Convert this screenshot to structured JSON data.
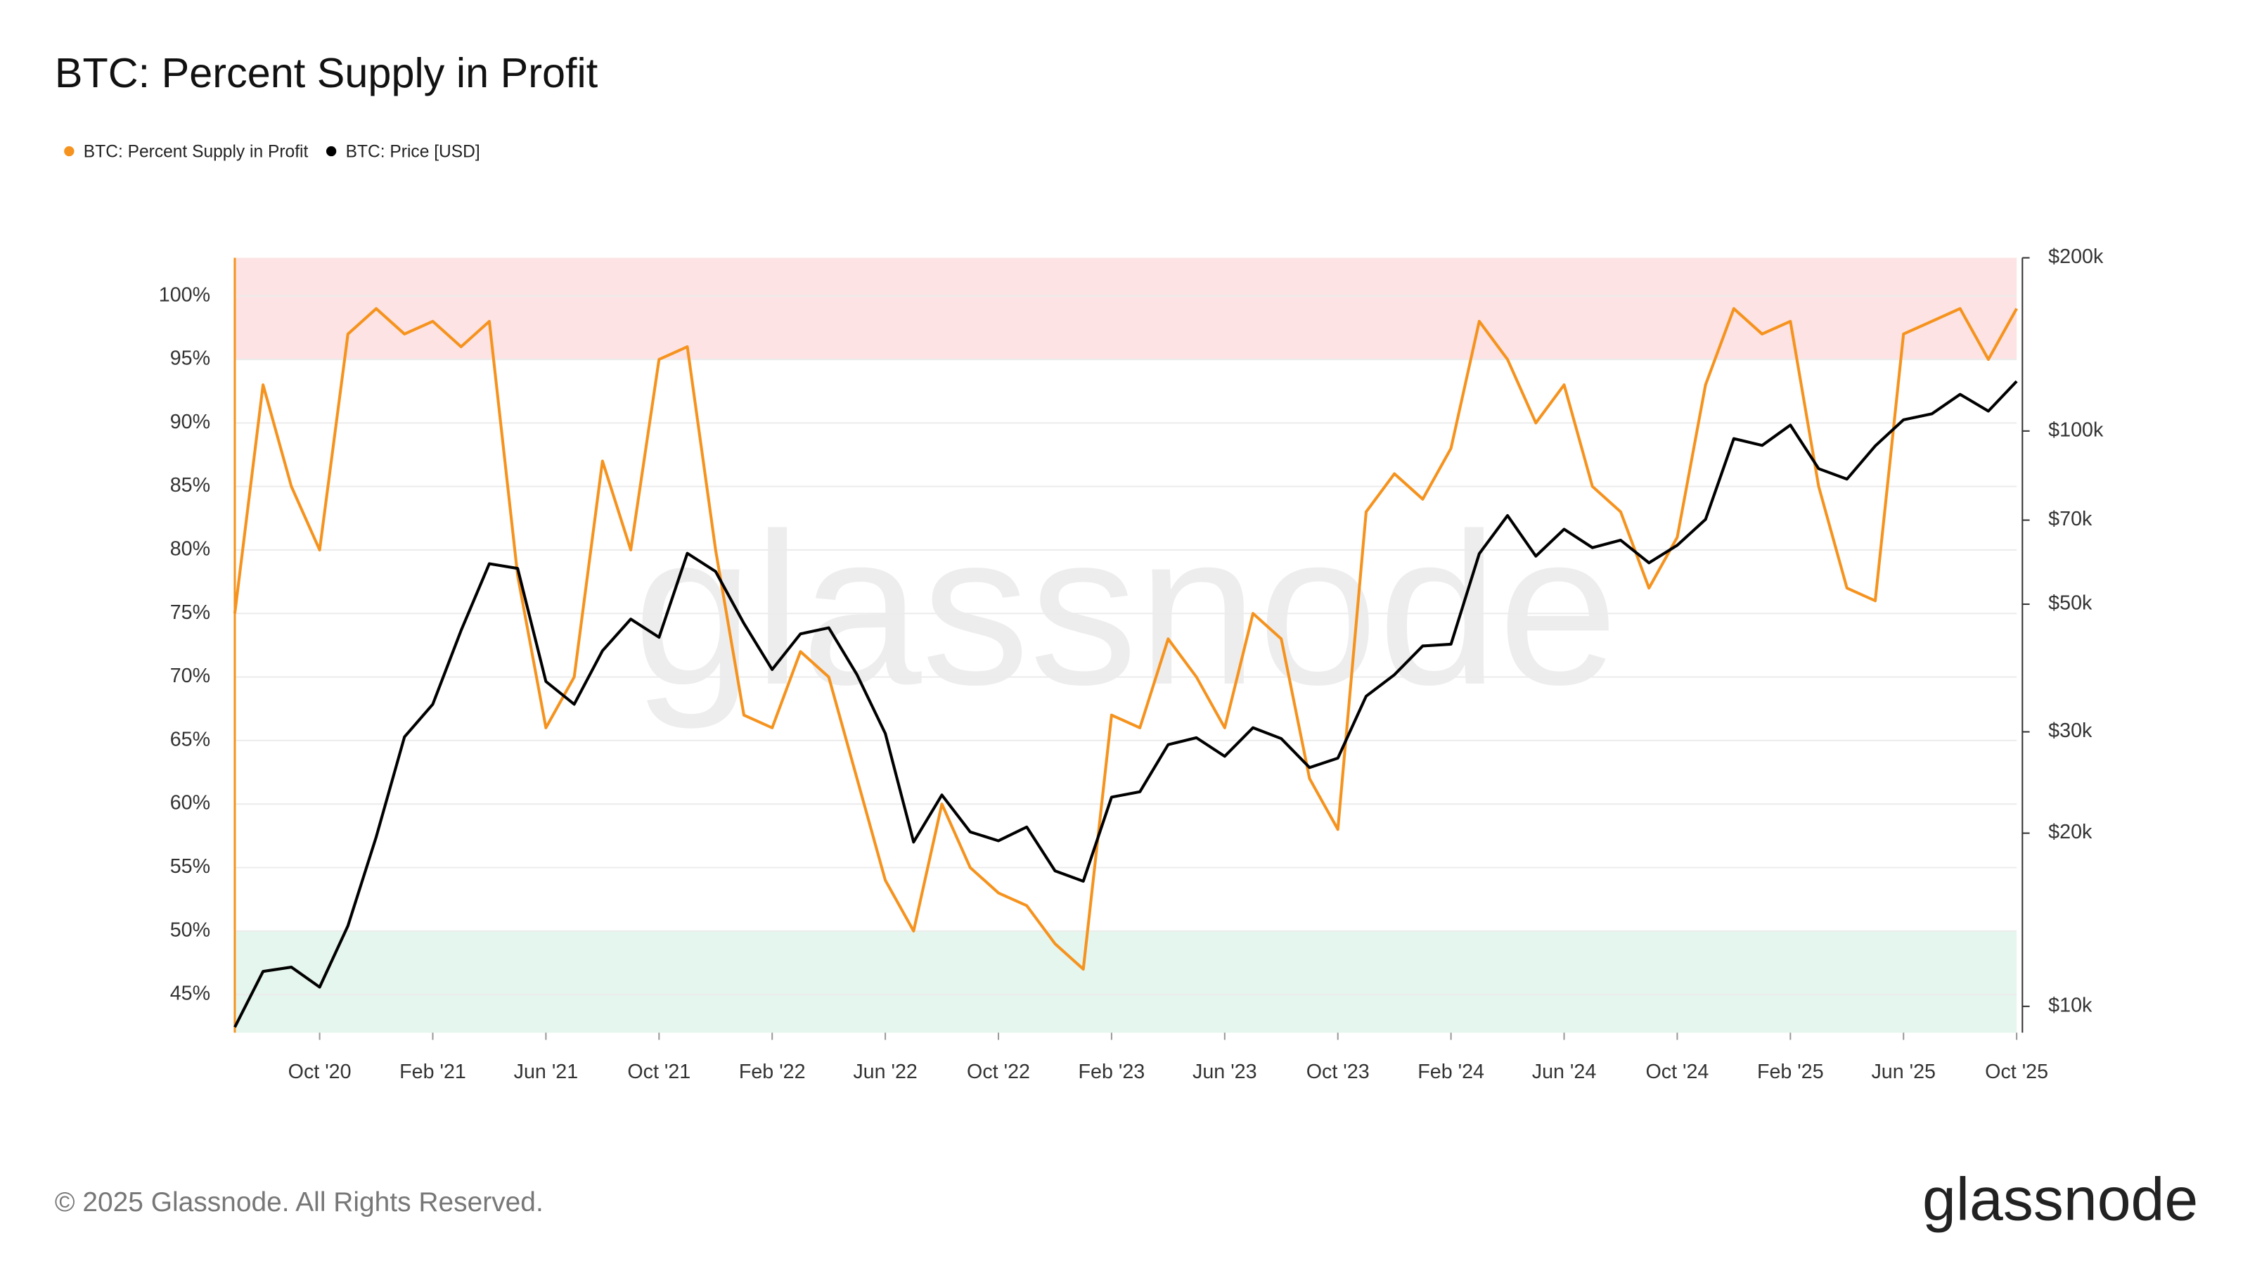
{
  "chart_data": {
    "type": "line",
    "title": "BTC: Percent Supply in Profit",
    "watermark": "glassnode",
    "footer": "© 2025 Glassnode. All Rights Reserved.",
    "logo": "glassnode",
    "x": [
      "2020-07",
      "2020-08",
      "2020-09",
      "2020-10",
      "2020-11",
      "2020-12",
      "2021-01",
      "2021-02",
      "2021-03",
      "2021-04",
      "2021-05",
      "2021-06",
      "2021-07",
      "2021-08",
      "2021-09",
      "2021-10",
      "2021-11",
      "2021-12",
      "2022-01",
      "2022-02",
      "2022-03",
      "2022-04",
      "2022-05",
      "2022-06",
      "2022-07",
      "2022-08",
      "2022-09",
      "2022-10",
      "2022-11",
      "2022-12",
      "2023-01",
      "2023-02",
      "2023-03",
      "2023-04",
      "2023-05",
      "2023-06",
      "2023-07",
      "2023-08",
      "2023-09",
      "2023-10",
      "2023-11",
      "2023-12",
      "2024-01",
      "2024-02",
      "2024-03",
      "2024-04",
      "2024-05",
      "2024-06",
      "2024-07",
      "2024-08",
      "2024-09",
      "2024-10",
      "2024-11",
      "2024-12",
      "2025-01",
      "2025-02",
      "2025-03",
      "2025-04",
      "2025-05",
      "2025-06",
      "2025-07",
      "2025-08",
      "2025-09",
      "2025-10"
    ],
    "series": [
      {
        "name": "BTC: Percent Supply in Profit",
        "color": "#f5931e",
        "axis": "y",
        "values": [
          75,
          93,
          85,
          80,
          97,
          99,
          97,
          98,
          96,
          98,
          78,
          66,
          70,
          87,
          80,
          95,
          96,
          80,
          67,
          66,
          72,
          70,
          62,
          54,
          50,
          60,
          55,
          53,
          52,
          49,
          47,
          67,
          66,
          73,
          70,
          66,
          75,
          73,
          62,
          58,
          83,
          86,
          84,
          88,
          98,
          95,
          90,
          93,
          85,
          83,
          77,
          81,
          93,
          99,
          97,
          98,
          85,
          77,
          76,
          97,
          98,
          99,
          95,
          99
        ]
      },
      {
        "name": "BTC: Price [USD]",
        "color": "#000000",
        "axis": "y2",
        "values": [
          9200,
          11500,
          11700,
          10800,
          13800,
          19700,
          29400,
          33500,
          45000,
          58800,
          57700,
          36700,
          33500,
          41500,
          47100,
          43800,
          61300,
          57000,
          46300,
          38500,
          44400,
          45500,
          37700,
          29800,
          19300,
          23300,
          20100,
          19400,
          20500,
          17200,
          16500,
          23100,
          23600,
          28500,
          29300,
          27200,
          30500,
          29200,
          26000,
          27000,
          34600,
          37700,
          42300,
          42600,
          61200,
          71300,
          60600,
          67500,
          62700,
          64600,
          59000,
          63300,
          70200,
          97000,
          94400,
          102400,
          86000,
          82500,
          94200,
          104600,
          107100,
          115800,
          108300,
          122000
        ]
      }
    ],
    "xlim": [
      "2020-07",
      "2025-10"
    ],
    "xticks": [
      {
        "value": "2020-10",
        "label": "Oct '20"
      },
      {
        "value": "2021-02",
        "label": "Feb '21"
      },
      {
        "value": "2021-06",
        "label": "Jun '21"
      },
      {
        "value": "2021-10",
        "label": "Oct '21"
      },
      {
        "value": "2022-02",
        "label": "Feb '22"
      },
      {
        "value": "2022-06",
        "label": "Jun '22"
      },
      {
        "value": "2022-10",
        "label": "Oct '22"
      },
      {
        "value": "2023-02",
        "label": "Feb '23"
      },
      {
        "value": "2023-06",
        "label": "Jun '23"
      },
      {
        "value": "2023-10",
        "label": "Oct '23"
      },
      {
        "value": "2024-02",
        "label": "Feb '24"
      },
      {
        "value": "2024-06",
        "label": "Jun '24"
      },
      {
        "value": "2024-10",
        "label": "Oct '24"
      },
      {
        "value": "2025-02",
        "label": "Feb '25"
      },
      {
        "value": "2025-06",
        "label": "Jun '25"
      },
      {
        "value": "2025-10",
        "label": "Oct '25"
      }
    ],
    "ylim": [
      42,
      103
    ],
    "yticks": [
      {
        "value": 45,
        "label": "45%"
      },
      {
        "value": 50,
        "label": "50%"
      },
      {
        "value": 55,
        "label": "55%"
      },
      {
        "value": 60,
        "label": "60%"
      },
      {
        "value": 65,
        "label": "65%"
      },
      {
        "value": 70,
        "label": "70%"
      },
      {
        "value": 75,
        "label": "75%"
      },
      {
        "value": 80,
        "label": "80%"
      },
      {
        "value": 85,
        "label": "85%"
      },
      {
        "value": 90,
        "label": "90%"
      },
      {
        "value": 95,
        "label": "95%"
      },
      {
        "value": 100,
        "label": "100%"
      }
    ],
    "y2lim": [
      9000,
      200000
    ],
    "y2log": true,
    "y2ticks": [
      {
        "value": 10000,
        "label": "$10k"
      },
      {
        "value": 20000,
        "label": "$20k"
      },
      {
        "value": 30000,
        "label": "$30k"
      },
      {
        "value": 50000,
        "label": "$50k"
      },
      {
        "value": 70000,
        "label": "$70k"
      },
      {
        "value": 100000,
        "label": "$100k"
      },
      {
        "value": 200000,
        "label": "$200k"
      }
    ],
    "bands": [
      {
        "from": 95,
        "to": 103,
        "color": "#fde3e3"
      },
      {
        "from": 42,
        "to": 50,
        "color": "#e5f6ee"
      }
    ],
    "grid": true,
    "legend": "top-left"
  }
}
